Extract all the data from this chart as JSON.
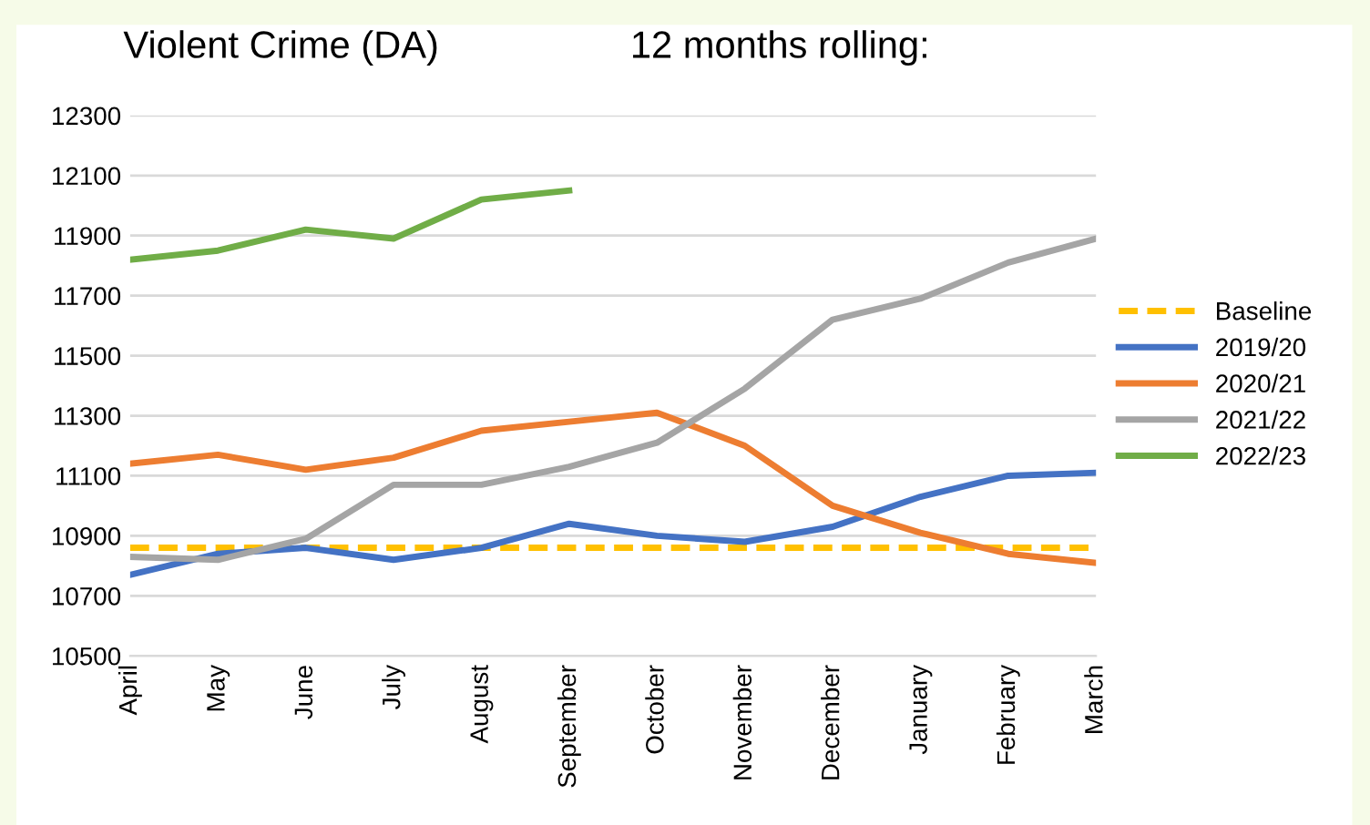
{
  "chart_data": {
    "type": "line",
    "title": "Violent Crime (DA)",
    "subtitle": "12 months rolling:",
    "categories": [
      "April",
      "May",
      "June",
      "July",
      "August",
      "September",
      "October",
      "November",
      "December",
      "January",
      "February",
      "March"
    ],
    "series": [
      {
        "name": "Baseline",
        "color": "#ffc000",
        "line_style": "dashed",
        "values": [
          10860,
          10860,
          10860,
          10860,
          10860,
          10860,
          10860,
          10860,
          10860,
          10860,
          10860,
          10860
        ]
      },
      {
        "name": "2019/20",
        "color": "#4472c4",
        "values": [
          10770,
          10840,
          10860,
          10820,
          10860,
          10940,
          10900,
          10880,
          10930,
          11030,
          11100,
          11110
        ]
      },
      {
        "name": "2020/21",
        "color": "#ed7d31",
        "values": [
          11140,
          11170,
          11120,
          11160,
          11250,
          11280,
          11310,
          11200,
          11000,
          10910,
          10840,
          10810
        ]
      },
      {
        "name": "2021/22",
        "color": "#a5a5a5",
        "values": [
          10830,
          10820,
          10890,
          11070,
          11070,
          11130,
          11210,
          11390,
          11620,
          11690,
          11810,
          11890
        ]
      },
      {
        "name": "2022/23",
        "color": "#70ad47",
        "values": [
          11820,
          11850,
          11920,
          11890,
          12020,
          12050,
          null,
          null,
          null,
          null,
          null,
          null
        ]
      }
    ],
    "ylim": [
      10500,
      12300
    ],
    "yticks": [
      10500,
      10700,
      10900,
      11100,
      11300,
      11500,
      11700,
      11900,
      12100,
      12300
    ],
    "grid": "y",
    "legend": "right",
    "marker": "none"
  }
}
